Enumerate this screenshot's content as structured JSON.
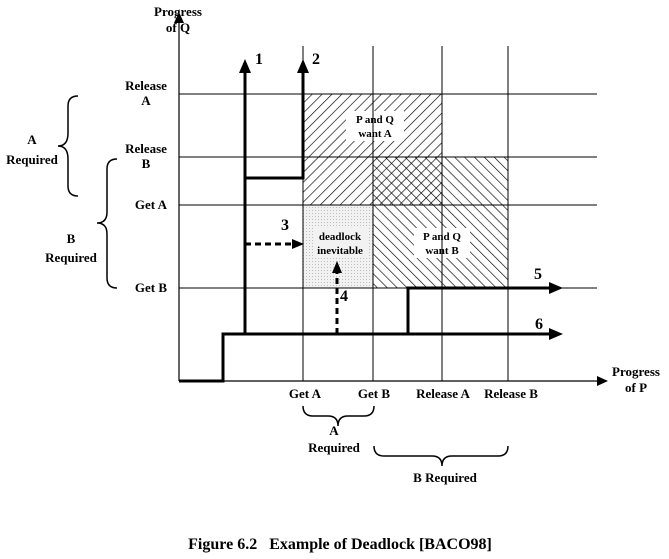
{
  "axes": {
    "y_title_line1": "Progress",
    "y_title_line2": "of Q",
    "x_title_line1": "Progress",
    "x_title_line2": "of P"
  },
  "y_ticks": {
    "release_a_line1": "Release",
    "release_a_line2": "A",
    "release_b_line1": "Release",
    "release_b_line2": "B",
    "get_a": "Get A",
    "get_b": "Get B"
  },
  "x_ticks": {
    "get_a": "Get A",
    "get_b": "Get B",
    "release_a": "Release A",
    "release_b": "Release B"
  },
  "brackets": {
    "left_a_line1": "A",
    "left_a_line2": "Required",
    "left_b_line1": "B",
    "left_b_line2": "Required",
    "bottom_a_line1": "A",
    "bottom_a_line2": "Required",
    "bottom_b": "B Required"
  },
  "regions": {
    "pq_want_a_line1": "P and Q",
    "pq_want_a_line2": "want A",
    "pq_want_b_line1": "P and Q",
    "pq_want_b_line2": "want B",
    "deadlock_line1": "deadlock",
    "deadlock_line2": "inevitable"
  },
  "paths": {
    "p1": "1",
    "p2": "2",
    "p3": "3",
    "p4": "4",
    "p5": "5",
    "p6": "6"
  },
  "caption": "Figure 6.2   Example of Deadlock [BACO98]"
}
